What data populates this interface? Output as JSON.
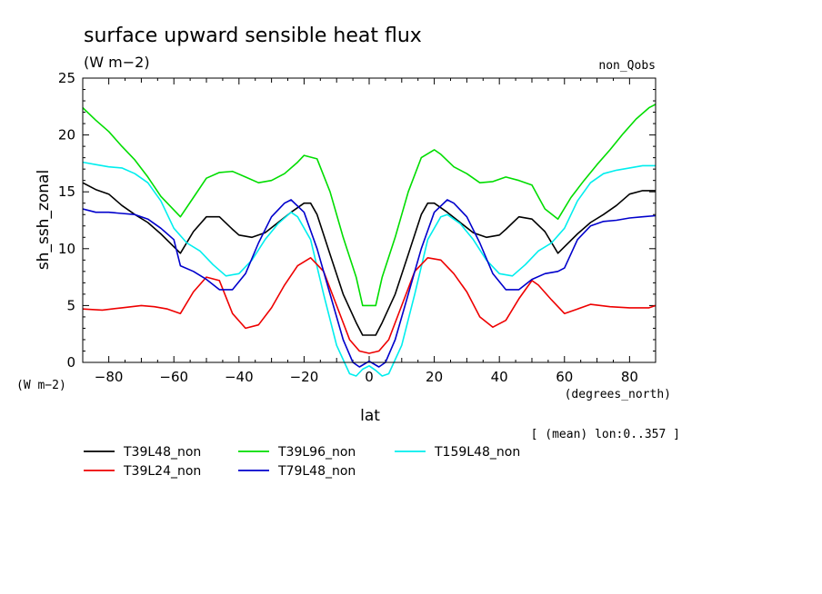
{
  "chart_data": {
    "type": "line",
    "title": "surface upward sensible heat flux",
    "units_label": "(W m−2)",
    "experiment_label": "non_Qobs",
    "xlabel": "lat",
    "x_units": "(degrees_north)",
    "ylabel": "sh_ssh_zonal",
    "y_units": "(W m−2)",
    "footnote": "[ (mean) lon:0..357 ]",
    "xlim": [
      -88,
      88
    ],
    "ylim": [
      0,
      25
    ],
    "x_ticks": [
      -80,
      -60,
      -40,
      -20,
      0,
      20,
      40,
      60,
      80
    ],
    "y_ticks": [
      0,
      5,
      10,
      15,
      20,
      25
    ],
    "legend_placement": "bottom",
    "series": [
      {
        "name": "T39L48_non",
        "color": "#000000",
        "points": [
          [
            -88,
            15.8
          ],
          [
            -84,
            15.2
          ],
          [
            -80,
            14.8
          ],
          [
            -76,
            13.8
          ],
          [
            -72,
            13
          ],
          [
            -68,
            12.3
          ],
          [
            -64,
            11.3
          ],
          [
            -58,
            9.6
          ],
          [
            -54,
            11.5
          ],
          [
            -50,
            12.8
          ],
          [
            -46,
            12.8
          ],
          [
            -42,
            11.7
          ],
          [
            -40,
            11.2
          ],
          [
            -36,
            11
          ],
          [
            -32,
            11.4
          ],
          [
            -28,
            12.3
          ],
          [
            -24,
            13.2
          ],
          [
            -20,
            14
          ],
          [
            -18,
            14
          ],
          [
            -16,
            13
          ],
          [
            -12,
            9.5
          ],
          [
            -8,
            6
          ],
          [
            -4,
            3.5
          ],
          [
            -2,
            2.4
          ],
          [
            2,
            2.4
          ],
          [
            4,
            3.5
          ],
          [
            8,
            6
          ],
          [
            12,
            9.5
          ],
          [
            16,
            13
          ],
          [
            18,
            14
          ],
          [
            20,
            14
          ],
          [
            24,
            13.2
          ],
          [
            28,
            12.3
          ],
          [
            32,
            11.4
          ],
          [
            36,
            11
          ],
          [
            40,
            11.2
          ],
          [
            42,
            11.7
          ],
          [
            46,
            12.8
          ],
          [
            50,
            12.6
          ],
          [
            54,
            11.5
          ],
          [
            58,
            9.6
          ],
          [
            64,
            11.3
          ],
          [
            68,
            12.3
          ],
          [
            72,
            13
          ],
          [
            76,
            13.8
          ],
          [
            80,
            14.8
          ],
          [
            84,
            15.1
          ],
          [
            88,
            15.1
          ]
        ]
      },
      {
        "name": "T39L96_non",
        "color": "#00dd00",
        "points": [
          [
            -88,
            22.4
          ],
          [
            -84,
            21.3
          ],
          [
            -80,
            20.3
          ],
          [
            -76,
            19
          ],
          [
            -72,
            17.8
          ],
          [
            -68,
            16.3
          ],
          [
            -64,
            14.6
          ],
          [
            -58,
            12.8
          ],
          [
            -54,
            14.5
          ],
          [
            -50,
            16.2
          ],
          [
            -46,
            16.7
          ],
          [
            -42,
            16.8
          ],
          [
            -38,
            16.3
          ],
          [
            -34,
            15.8
          ],
          [
            -30,
            16
          ],
          [
            -26,
            16.6
          ],
          [
            -22,
            17.6
          ],
          [
            -20,
            18.2
          ],
          [
            -16,
            17.9
          ],
          [
            -12,
            15
          ],
          [
            -8,
            11
          ],
          [
            -4,
            7.5
          ],
          [
            -2,
            5
          ],
          [
            2,
            5
          ],
          [
            4,
            7.5
          ],
          [
            8,
            11
          ],
          [
            12,
            15
          ],
          [
            16,
            18
          ],
          [
            20,
            18.7
          ],
          [
            22,
            18.3
          ],
          [
            26,
            17.2
          ],
          [
            30,
            16.6
          ],
          [
            34,
            15.8
          ],
          [
            38,
            15.9
          ],
          [
            42,
            16.3
          ],
          [
            46,
            16
          ],
          [
            50,
            15.6
          ],
          [
            54,
            13.5
          ],
          [
            58,
            12.6
          ],
          [
            62,
            14.5
          ],
          [
            66,
            16
          ],
          [
            70,
            17.4
          ],
          [
            74,
            18.7
          ],
          [
            78,
            20.1
          ],
          [
            82,
            21.4
          ],
          [
            86,
            22.4
          ],
          [
            88,
            22.7
          ]
        ]
      },
      {
        "name": "T159L48_non",
        "color": "#00eeee",
        "points": [
          [
            -88,
            17.6
          ],
          [
            -84,
            17.4
          ],
          [
            -80,
            17.2
          ],
          [
            -76,
            17.1
          ],
          [
            -72,
            16.6
          ],
          [
            -68,
            15.8
          ],
          [
            -64,
            14.2
          ],
          [
            -60,
            11.8
          ],
          [
            -56,
            10.5
          ],
          [
            -52,
            9.8
          ],
          [
            -48,
            8.6
          ],
          [
            -44,
            7.6
          ],
          [
            -40,
            7.8
          ],
          [
            -36,
            9
          ],
          [
            -32,
            10.8
          ],
          [
            -28,
            12.2
          ],
          [
            -24,
            13.2
          ],
          [
            -22,
            12.8
          ],
          [
            -18,
            10.8
          ],
          [
            -14,
            6
          ],
          [
            -10,
            1.5
          ],
          [
            -6,
            -1
          ],
          [
            -4,
            -1.2
          ],
          [
            -2,
            -0.6
          ],
          [
            0,
            -0.3
          ],
          [
            2,
            -0.7
          ],
          [
            4,
            -1.2
          ],
          [
            6,
            -1
          ],
          [
            10,
            1.5
          ],
          [
            14,
            6
          ],
          [
            18,
            10.8
          ],
          [
            22,
            12.8
          ],
          [
            24,
            13
          ],
          [
            28,
            12.2
          ],
          [
            32,
            10.8
          ],
          [
            36,
            9
          ],
          [
            40,
            7.8
          ],
          [
            44,
            7.6
          ],
          [
            48,
            8.6
          ],
          [
            52,
            9.8
          ],
          [
            56,
            10.5
          ],
          [
            60,
            11.8
          ],
          [
            64,
            14.2
          ],
          [
            68,
            15.8
          ],
          [
            72,
            16.6
          ],
          [
            76,
            16.9
          ],
          [
            80,
            17.1
          ],
          [
            84,
            17.3
          ],
          [
            88,
            17.3
          ]
        ]
      },
      {
        "name": "T39L24_non",
        "color": "#ee0000",
        "points": [
          [
            -88,
            4.7
          ],
          [
            -82,
            4.6
          ],
          [
            -76,
            4.8
          ],
          [
            -70,
            5
          ],
          [
            -66,
            4.9
          ],
          [
            -62,
            4.7
          ],
          [
            -58,
            4.3
          ],
          [
            -54,
            6.2
          ],
          [
            -50,
            7.5
          ],
          [
            -46,
            7.2
          ],
          [
            -42,
            4.3
          ],
          [
            -38,
            3
          ],
          [
            -34,
            3.3
          ],
          [
            -30,
            4.8
          ],
          [
            -26,
            6.8
          ],
          [
            -22,
            8.5
          ],
          [
            -18,
            9.2
          ],
          [
            -14,
            8
          ],
          [
            -10,
            5
          ],
          [
            -6,
            2
          ],
          [
            -3,
            1
          ],
          [
            0,
            0.8
          ],
          [
            3,
            1
          ],
          [
            6,
            2
          ],
          [
            10,
            5
          ],
          [
            14,
            8
          ],
          [
            18,
            9.2
          ],
          [
            22,
            9
          ],
          [
            26,
            7.8
          ],
          [
            30,
            6.2
          ],
          [
            34,
            4
          ],
          [
            38,
            3.1
          ],
          [
            42,
            3.7
          ],
          [
            46,
            5.6
          ],
          [
            50,
            7.2
          ],
          [
            52,
            6.8
          ],
          [
            56,
            5.5
          ],
          [
            60,
            4.3
          ],
          [
            64,
            4.7
          ],
          [
            68,
            5.1
          ],
          [
            74,
            4.9
          ],
          [
            80,
            4.8
          ],
          [
            86,
            4.8
          ],
          [
            88,
            5
          ]
        ]
      },
      {
        "name": "T79L48_non",
        "color": "#0000cc",
        "points": [
          [
            -88,
            13.5
          ],
          [
            -84,
            13.2
          ],
          [
            -80,
            13.2
          ],
          [
            -76,
            13.1
          ],
          [
            -72,
            13
          ],
          [
            -68,
            12.6
          ],
          [
            -64,
            11.8
          ],
          [
            -60,
            10.8
          ],
          [
            -58,
            8.5
          ],
          [
            -54,
            8
          ],
          [
            -50,
            7.3
          ],
          [
            -46,
            6.4
          ],
          [
            -42,
            6.4
          ],
          [
            -38,
            7.8
          ],
          [
            -34,
            10.5
          ],
          [
            -30,
            12.8
          ],
          [
            -26,
            14
          ],
          [
            -24,
            14.3
          ],
          [
            -20,
            13.2
          ],
          [
            -16,
            10
          ],
          [
            -12,
            6
          ],
          [
            -8,
            2
          ],
          [
            -5,
            0
          ],
          [
            -3,
            -0.4
          ],
          [
            0,
            0.1
          ],
          [
            3,
            -0.4
          ],
          [
            5,
            0
          ],
          [
            8,
            2
          ],
          [
            12,
            6
          ],
          [
            16,
            10
          ],
          [
            20,
            13.2
          ],
          [
            24,
            14.3
          ],
          [
            26,
            14
          ],
          [
            30,
            12.8
          ],
          [
            34,
            10.5
          ],
          [
            38,
            7.8
          ],
          [
            42,
            6.4
          ],
          [
            46,
            6.4
          ],
          [
            50,
            7.3
          ],
          [
            54,
            7.8
          ],
          [
            58,
            8
          ],
          [
            60,
            8.3
          ],
          [
            64,
            10.8
          ],
          [
            68,
            12
          ],
          [
            72,
            12.4
          ],
          [
            76,
            12.5
          ],
          [
            80,
            12.7
          ],
          [
            84,
            12.8
          ],
          [
            88,
            12.9
          ]
        ]
      }
    ]
  }
}
